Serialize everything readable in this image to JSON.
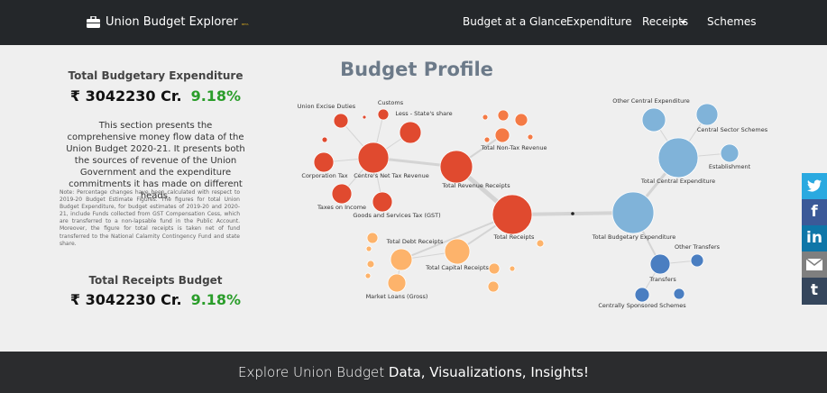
{
  "nav": {
    "brand": "Union Budget Explorer",
    "badge": "BETA",
    "items": [
      "Budget at a Glance",
      "Expenditure",
      "Receipts",
      "Schemes"
    ]
  },
  "summary": {
    "expenditure": {
      "title": "Total Budgetary Expenditure",
      "amount": "₹ 3042230 Cr.",
      "change": "9.18%"
    },
    "description": "This section presents the comprehensive money flow data of the Union Budget 2020-21. It presents both the sources of revenue of the Union Government and the expenditure commitments it has made on different heads.",
    "note": "Note: Percentage changes have been calculated with respect to 2019-20 Budget Estimate Figures. The figures for total Union Budget Expenditure, for budget estimates of 2019-20 and 2020-21, include Funds collected from GST Compensation Cess, which are transferred to a non-lapsable fund in the Public Account. Moreover, the figure for total receipts is taken net of fund transferred to the National Calamity Contingency Fund and state share.",
    "receipts": {
      "title": "Total Receipts Budget",
      "amount": "₹ 3042230 Cr.",
      "change": "9.18%"
    }
  },
  "diagram": {
    "title": "Budget Profile",
    "nodes": [
      {
        "label": "Total Receipts"
      },
      {
        "label": "Total Revenue Receipts"
      },
      {
        "label": "Centre's Net Tax Revenue"
      },
      {
        "label": "Union Excise Duties"
      },
      {
        "label": "Customs"
      },
      {
        "label": "Less - State's share"
      },
      {
        "label": "Corporation Tax"
      },
      {
        "label": "Taxes on Income"
      },
      {
        "label": "Goods and Services Tax (GST)"
      },
      {
        "label": "Total Non-Tax Revenue"
      },
      {
        "label": "Total Debt Receipts"
      },
      {
        "label": "Total Capital Receipts"
      },
      {
        "label": "Market Loans (Gross)"
      },
      {
        "label": "Total Budgetary Expenditure"
      },
      {
        "label": "Total Central Expenditure"
      },
      {
        "label": "Other Central Expenditure"
      },
      {
        "label": "Central Sector Schemes"
      },
      {
        "label": "Establishment"
      },
      {
        "label": "Transfers"
      },
      {
        "label": "Other Transfers"
      },
      {
        "label": "Centrally Sponsored Schemes"
      }
    ]
  },
  "social": [
    "f",
    "in",
    "t"
  ],
  "footer": {
    "lead": "Explore Union Budget",
    "bold": "Data, Visualizations, Insights!"
  }
}
